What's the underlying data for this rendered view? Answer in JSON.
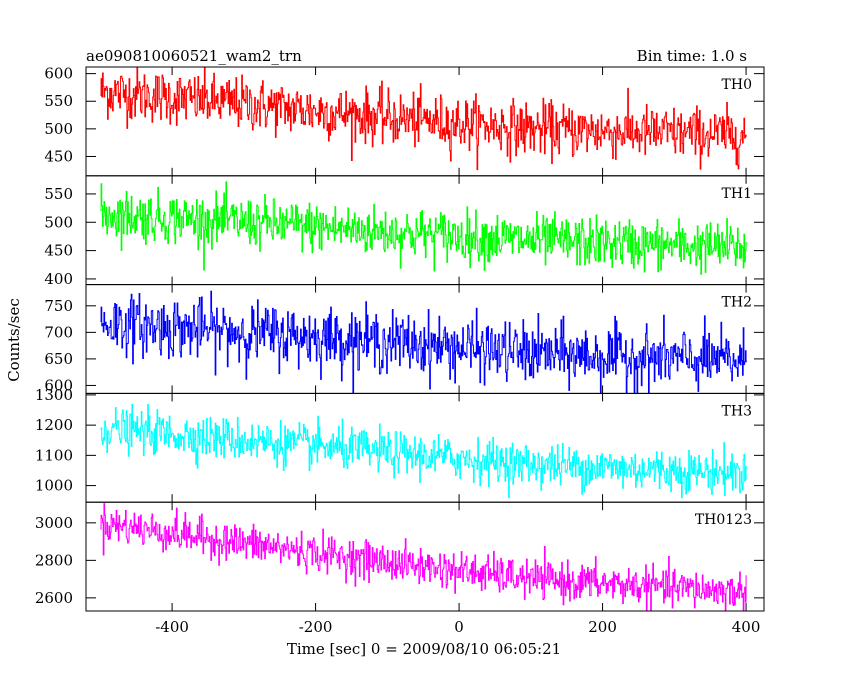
{
  "header": {
    "title": "ae090810060521_wam2_trn",
    "bin_time": "Bin time: 1.0 s"
  },
  "chart_data": {
    "type": "line",
    "title": "ae090810060521_wam2_trn",
    "subtitle": "Bin time: 1.0 s",
    "xlabel": "Time [sec] 0 = 2009/08/10 06:05:21",
    "ylabel": "Counts/sec",
    "xlim": [
      -520,
      425
    ],
    "x_ticks": [
      -400,
      -200,
      0,
      200,
      400
    ],
    "x_range_data": [
      -500,
      400
    ],
    "bin_time_s": 1.0,
    "grid": false,
    "panels": [
      {
        "name": "TH0",
        "color": "#ff0000",
        "ylim": [
          415,
          612
        ],
        "y_ticks": [
          450,
          500,
          550,
          600
        ],
        "trend": [
          {
            "x": -500,
            "y": 568
          },
          {
            "x": -300,
            "y": 545
          },
          {
            "x": -100,
            "y": 520
          },
          {
            "x": 100,
            "y": 500
          },
          {
            "x": 400,
            "y": 488
          }
        ],
        "noise_sd": 24
      },
      {
        "name": "TH1",
        "color": "#00ff00",
        "ylim": [
          390,
          582
        ],
        "y_ticks": [
          400,
          450,
          500,
          550
        ],
        "trend": [
          {
            "x": -500,
            "y": 515
          },
          {
            "x": -300,
            "y": 500
          },
          {
            "x": -100,
            "y": 483
          },
          {
            "x": 100,
            "y": 468
          },
          {
            "x": 400,
            "y": 455
          }
        ],
        "noise_sd": 22
      },
      {
        "name": "TH2",
        "color": "#0000ff",
        "ylim": [
          585,
          790
        ],
        "y_ticks": [
          600,
          650,
          700,
          750
        ],
        "trend": [
          {
            "x": -500,
            "y": 718
          },
          {
            "x": -300,
            "y": 700
          },
          {
            "x": -100,
            "y": 682
          },
          {
            "x": 100,
            "y": 660
          },
          {
            "x": 400,
            "y": 645
          }
        ],
        "noise_sd": 28
      },
      {
        "name": "TH3",
        "color": "#00ffff",
        "ylim": [
          945,
          1305
        ],
        "y_ticks": [
          1000,
          1100,
          1200,
          1300
        ],
        "trend": [
          {
            "x": -500,
            "y": 1190
          },
          {
            "x": -300,
            "y": 1150
          },
          {
            "x": -100,
            "y": 1110
          },
          {
            "x": 100,
            "y": 1070
          },
          {
            "x": 400,
            "y": 1040
          }
        ],
        "noise_sd": 35
      },
      {
        "name": "TH0123",
        "color": "#ff00ff",
        "ylim": [
          2530,
          3110
        ],
        "y_ticks": [
          2600,
          2800,
          3000
        ],
        "trend": [
          {
            "x": -500,
            "y": 3000
          },
          {
            "x": -300,
            "y": 2890
          },
          {
            "x": -100,
            "y": 2790
          },
          {
            "x": 100,
            "y": 2700
          },
          {
            "x": 400,
            "y": 2630
          }
        ],
        "noise_sd": 50
      }
    ]
  }
}
